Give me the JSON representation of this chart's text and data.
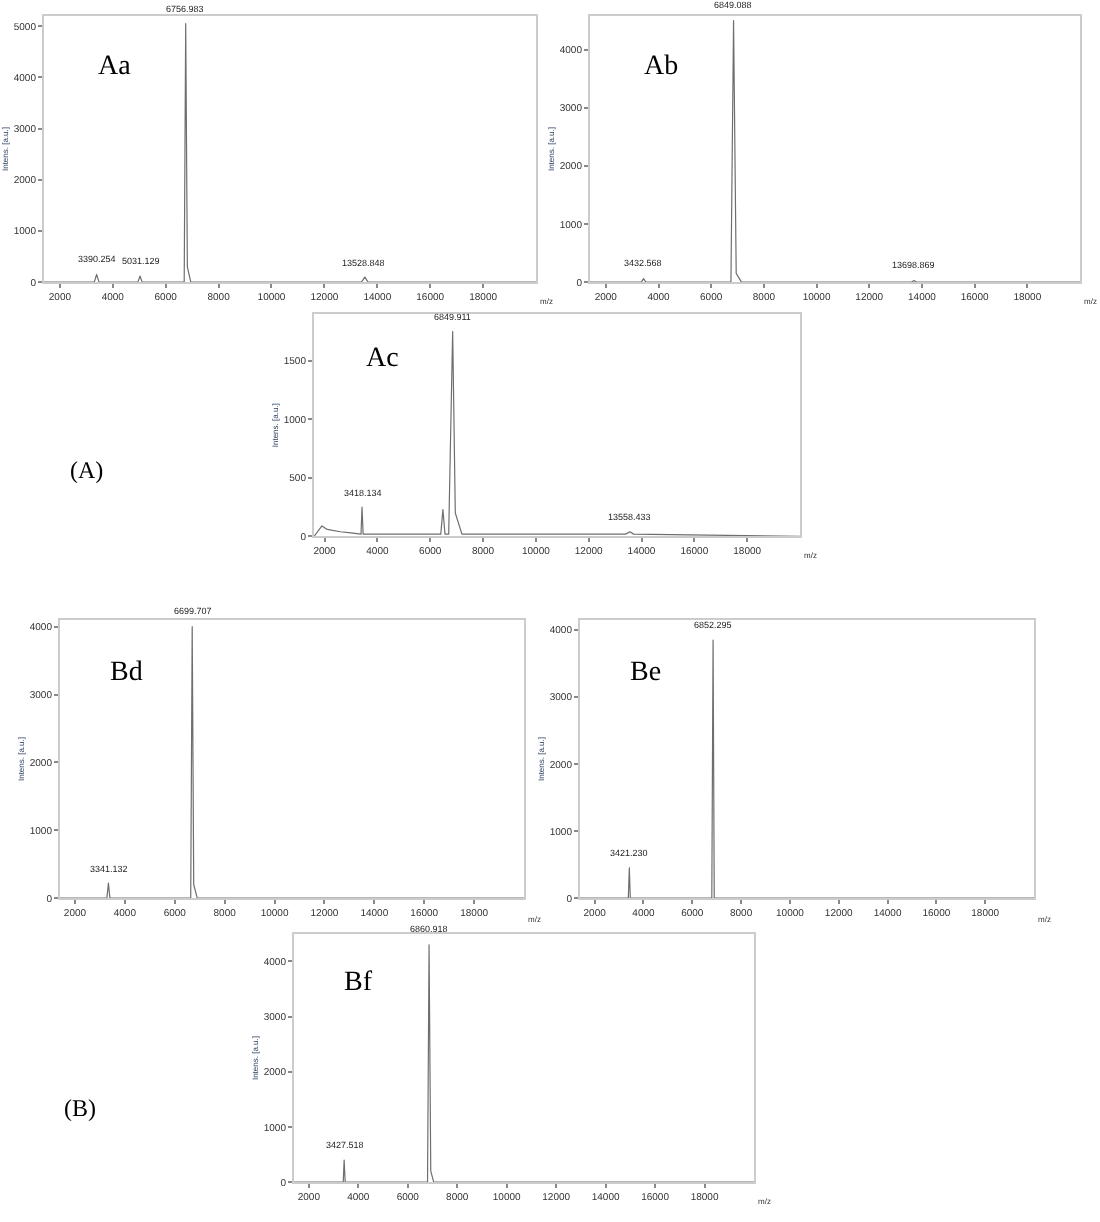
{
  "chart_data": [
    {
      "type": "line",
      "xlabel": "m/z",
      "ylabel": "Intens. [a.u.]",
      "color": "#6e6e6e",
      "xlim": [
        1400,
        20000
      ],
      "ylim": [
        0,
        5200
      ],
      "xticks": [
        2000,
        4000,
        6000,
        8000,
        10000,
        12000,
        14000,
        16000,
        18000
      ],
      "yticks": [
        0,
        1000,
        2000,
        3000,
        4000,
        5000
      ],
      "x": [
        1400,
        3300,
        3390.254,
        3480,
        4950,
        5031.129,
        5110,
        6700,
        6756.983,
        6820,
        6950,
        13400,
        13528.848,
        13650,
        20000
      ],
      "values": [
        0,
        0,
        150,
        0,
        0,
        120,
        0,
        0,
        5050,
        300,
        0,
        0,
        100,
        0,
        0
      ],
      "annotations": [
        "Aa",
        {
          "text": "3390.254",
          "x": 3390.254,
          "y": 150
        },
        {
          "text": "5031.129",
          "x": 5031.129,
          "y": 120
        },
        {
          "text": "6756.983",
          "x": 6756.983,
          "y": 5050
        },
        {
          "text": "13528.848",
          "x": 13528.848,
          "y": 100
        }
      ]
    },
    {
      "type": "line",
      "xlabel": "m/z",
      "ylabel": "Intens. [a.u.]",
      "color": "#6e6e6e",
      "xlim": [
        1400,
        20000
      ],
      "ylim": [
        0,
        4580
      ],
      "xticks": [
        2000,
        4000,
        6000,
        8000,
        10000,
        12000,
        14000,
        16000,
        18000
      ],
      "yticks": [
        0,
        1000,
        2000,
        3000,
        4000
      ],
      "x": [
        1400,
        3350,
        3432.568,
        3520,
        6750,
        6849.088,
        6950,
        7150,
        13600,
        13698.869,
        13800,
        20000
      ],
      "values": [
        0,
        0,
        60,
        0,
        0,
        4500,
        150,
        0,
        0,
        30,
        0,
        0
      ],
      "annotations": [
        "Ab",
        {
          "text": "3432.568",
          "x": 3432.568,
          "y": 60
        },
        {
          "text": "6849.088",
          "x": 6849.088,
          "y": 4500
        },
        {
          "text": "13698.869",
          "x": 13698.869,
          "y": 30
        }
      ]
    },
    {
      "type": "line",
      "xlabel": "m/z",
      "ylabel": "Intens. [a.u.]",
      "color": "#6e6e6e",
      "xlim": [
        1600,
        20000
      ],
      "ylim": [
        0,
        1900
      ],
      "xticks": [
        2000,
        4000,
        6000,
        8000,
        10000,
        12000,
        14000,
        16000,
        18000
      ],
      "yticks": [
        0,
        500,
        1000,
        1500
      ],
      "x": [
        1600,
        1900,
        2100,
        2600,
        3000,
        3380,
        3418.134,
        3460,
        4000,
        6400,
        6480,
        6560,
        6700,
        6849.911,
        6950,
        7200,
        13400,
        13558.433,
        13700,
        20000
      ],
      "values": [
        0,
        90,
        60,
        40,
        30,
        20,
        250,
        20,
        20,
        20,
        230,
        20,
        20,
        1750,
        200,
        20,
        20,
        40,
        20,
        0
      ],
      "annotations": [
        "Ac",
        "(A)",
        {
          "text": "3418.134",
          "x": 3418.134,
          "y": 250
        },
        {
          "text": "6849.911",
          "x": 6849.911,
          "y": 1750
        },
        {
          "text": "13558.433",
          "x": 13558.433,
          "y": 40
        }
      ]
    },
    {
      "type": "line",
      "xlabel": "m/z",
      "ylabel": "Intens. [a.u.]",
      "color": "#6e6e6e",
      "xlim": [
        1400,
        20000
      ],
      "ylim": [
        0,
        4100
      ],
      "xticks": [
        2000,
        4000,
        6000,
        8000,
        10000,
        12000,
        14000,
        16000,
        18000
      ],
      "yticks": [
        0,
        1000,
        2000,
        3000,
        4000
      ],
      "x": [
        1400,
        3280,
        3341.132,
        3400,
        6640,
        6699.707,
        6760,
        6900,
        20000
      ],
      "values": [
        0,
        0,
        220,
        0,
        0,
        4000,
        200,
        0,
        0
      ],
      "annotations": [
        "Bd",
        {
          "text": "3341.132",
          "x": 3341.132,
          "y": 220
        },
        {
          "text": "6699.707",
          "x": 6699.707,
          "y": 4000
        }
      ]
    },
    {
      "type": "line",
      "xlabel": "m/z",
      "ylabel": "Intens. [a.u.]",
      "color": "#6e6e6e",
      "xlim": [
        1400,
        20000
      ],
      "ylim": [
        0,
        4150
      ],
      "xticks": [
        2000,
        4000,
        6000,
        8000,
        10000,
        12000,
        14000,
        16000,
        18000
      ],
      "yticks": [
        0,
        1000,
        2000,
        3000,
        4000
      ],
      "x": [
        1400,
        3380,
        3421.23,
        3460,
        6800,
        6852.295,
        6900,
        20000
      ],
      "values": [
        0,
        0,
        450,
        0,
        0,
        3850,
        0,
        0
      ],
      "annotations": [
        "Be",
        {
          "text": "3421.230",
          "x": 3421.23,
          "y": 450
        },
        {
          "text": "6852.295",
          "x": 6852.295,
          "y": 3850
        }
      ]
    },
    {
      "type": "line",
      "xlabel": "m/z",
      "ylabel": "Intens. [a.u.]",
      "color": "#6e6e6e",
      "xlim": [
        1400,
        20000
      ],
      "ylim": [
        0,
        4500
      ],
      "xticks": [
        2000,
        4000,
        6000,
        8000,
        10000,
        12000,
        14000,
        16000,
        18000
      ],
      "yticks": [
        0,
        1000,
        2000,
        3000,
        4000
      ],
      "x": [
        1400,
        3390,
        3427.518,
        3470,
        6800,
        6860.918,
        6930,
        7050,
        20000
      ],
      "values": [
        0,
        0,
        400,
        0,
        0,
        4300,
        200,
        0,
        0
      ],
      "annotations": [
        "Bf",
        "(B)",
        {
          "text": "3427.518",
          "x": 3427.518,
          "y": 400
        },
        {
          "text": "6860.918",
          "x": 6860.918,
          "y": 4300
        }
      ]
    }
  ]
}
